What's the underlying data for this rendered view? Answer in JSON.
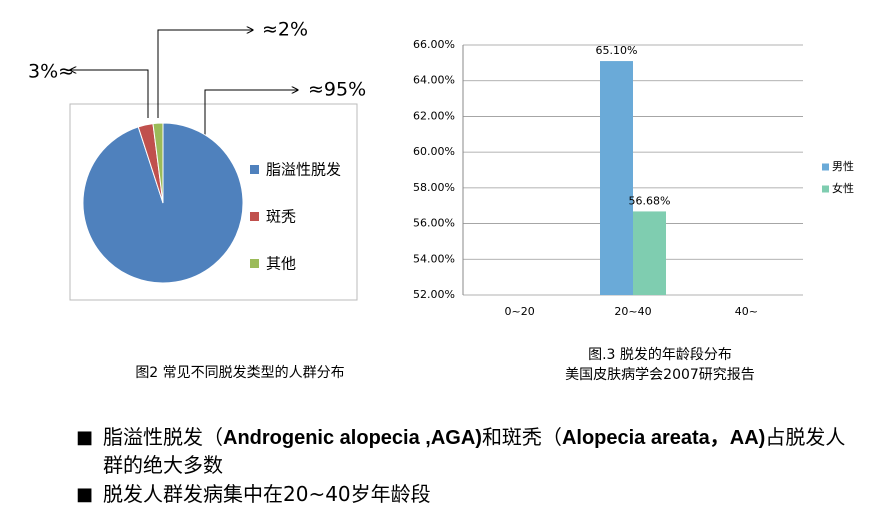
{
  "chart_data": [
    {
      "type": "pie",
      "categories": [
        "脂溢性脱发",
        "斑秃",
        "其他"
      ],
      "values": [
        95,
        3,
        2
      ],
      "value_labels": [
        "≈95%",
        "3%≈",
        "≈2%"
      ],
      "colors": [
        "#4f81bd",
        "#c0504d",
        "#9bbb59"
      ],
      "caption": "图2  常见不同脱发类型的人群分布"
    },
    {
      "type": "bar",
      "categories": [
        "0~20",
        "20~40",
        "40~"
      ],
      "series": [
        {
          "name": "男性",
          "color": "#6aaad8",
          "values": [
            null,
            65.1,
            null
          ],
          "value_labels": [
            null,
            "65.10%",
            null
          ]
        },
        {
          "name": "女性",
          "color": "#7fcdb0",
          "values": [
            null,
            56.68,
            null
          ],
          "value_labels": [
            null,
            "56.68%",
            null
          ]
        }
      ],
      "ylim": [
        52,
        66
      ],
      "yticks": [
        {
          "value": 52,
          "label": "52.00%"
        },
        {
          "value": 54,
          "label": "54.00%"
        },
        {
          "value": 56,
          "label": "56.00%"
        },
        {
          "value": 58,
          "label": "58.00%"
        },
        {
          "value": 60,
          "label": "60.00%"
        },
        {
          "value": 62,
          "label": "62.00%"
        },
        {
          "value": 64,
          "label": "64.00%"
        },
        {
          "value": 66,
          "label": "66.00%"
        }
      ],
      "grid": true,
      "legend": "right",
      "caption": [
        "图.3   脱发的年龄段分布",
        "美国皮肤病学会2007研究报告"
      ]
    }
  ],
  "bullets": [
    [
      "脂溢性脱发（",
      "Androgenic alopecia ,AGA)",
      "和斑秃（",
      "Alopecia areata，AA)",
      "占脱发人群的绝大多数"
    ],
    [
      "脱发人群发病集中在20~40岁年龄段"
    ]
  ]
}
